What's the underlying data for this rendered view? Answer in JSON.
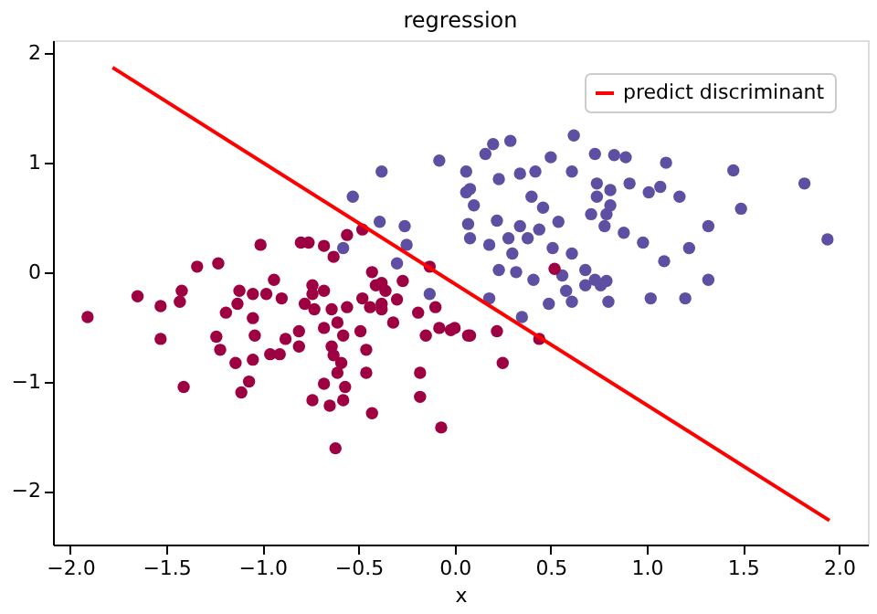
{
  "chart_data": {
    "type": "scatter",
    "title": "regression",
    "xlabel": "x",
    "xlim": [
      -2.09,
      2.15
    ],
    "ylim": [
      -2.49,
      2.12
    ],
    "xticks": [
      {
        "value": -2,
        "label": "−2.0"
      },
      {
        "value": -1.5,
        "label": "−1.5"
      },
      {
        "value": -1,
        "label": "−1.0"
      },
      {
        "value": -0.5,
        "label": "−0.5"
      },
      {
        "value": 0,
        "label": "0.0"
      },
      {
        "value": 0.5,
        "label": "0.5"
      },
      {
        "value": 1,
        "label": "1.0"
      },
      {
        "value": 1.5,
        "label": "1.5"
      },
      {
        "value": 2,
        "label": "2.0"
      }
    ],
    "yticks": [
      {
        "value": -2,
        "label": "−2"
      },
      {
        "value": -1,
        "label": "−1"
      },
      0,
      1,
      2
    ],
    "grid": false,
    "legend": "top right",
    "series": [
      {
        "type": "scatter",
        "marker": "circle",
        "color": "#5e4fa2",
        "x": [
          0.62,
          0.29,
          0.2,
          0.16,
          0.5,
          0.73,
          0.83,
          0.89,
          1.1,
          1.45,
          1.82,
          1.94,
          1.49,
          1.32,
          1.22,
          1.09,
          0.98,
          1.17,
          1.07,
          1.01,
          0.91,
          0.81,
          0.74,
          0.74,
          0.81,
          0.79,
          0.71,
          0.78,
          0.88,
          0.61,
          0.42,
          0.34,
          0.23,
          0.06,
          0.08,
          0.1,
          0.07,
          0.08,
          0.4,
          0.46,
          0.54,
          0.44,
          0.34,
          0.22,
          0.28,
          0.38,
          0.51,
          0.61,
          0.18,
          0.3,
          0.23,
          0.32,
          0.41,
          0.56,
          0.68,
          0.73,
          0.79,
          0.76,
          0.68,
          0.58,
          1.02,
          1.2,
          1.32,
          0.49,
          0.61,
          0.8,
          0.35,
          0.18,
          -0.08,
          -0.38,
          -0.53,
          -0.39,
          -0.26,
          -0.25,
          -0.58,
          -0.3,
          -0.13,
          0.06
        ],
        "values": [
          1.25,
          1.2,
          1.17,
          1.08,
          1.05,
          1.08,
          1.07,
          1.05,
          1.0,
          0.93,
          0.81,
          0.3,
          0.58,
          0.42,
          0.22,
          0.1,
          0.27,
          0.69,
          0.78,
          0.73,
          0.81,
          0.75,
          0.81,
          0.69,
          0.61,
          0.53,
          0.53,
          0.42,
          0.36,
          0.92,
          0.92,
          0.9,
          0.85,
          0.92,
          0.76,
          0.61,
          0.44,
          0.31,
          0.69,
          0.59,
          0.46,
          0.39,
          0.42,
          0.47,
          0.31,
          0.31,
          0.22,
          0.17,
          0.25,
          0.17,
          0.02,
          0.0,
          -0.07,
          -0.03,
          0.02,
          -0.07,
          -0.08,
          -0.12,
          -0.12,
          -0.17,
          -0.24,
          -0.24,
          -0.07,
          -0.29,
          -0.27,
          -0.27,
          -0.41,
          -0.24,
          1.02,
          0.92,
          0.69,
          0.46,
          0.42,
          0.25,
          0.22,
          0.08,
          -0.2,
          0.73
        ]
      },
      {
        "type": "scatter",
        "marker": "circle",
        "color": "#9e0142",
        "x": [
          -1.91,
          -1.65,
          -1.53,
          -1.42,
          -1.43,
          -1.53,
          -1.41,
          -1.34,
          -1.23,
          -1.12,
          -1.05,
          -0.98,
          -1.13,
          -1.19,
          -1.05,
          -0.94,
          -0.9,
          -1.24,
          -1.22,
          -1.14,
          -1.05,
          -1.04,
          -0.96,
          -0.91,
          -0.88,
          -0.81,
          -0.81,
          -1.07,
          -1.11,
          -0.78,
          -0.74,
          -0.68,
          -0.64,
          -0.73,
          -0.56,
          -0.48,
          -0.44,
          -0.38,
          -0.36,
          -0.3,
          -0.32,
          -0.38,
          -0.68,
          -0.61,
          -0.58,
          -0.49,
          -0.64,
          -0.63,
          -0.59,
          -0.61,
          -0.46,
          -0.46,
          -0.68,
          -0.74,
          -0.65,
          -0.57,
          -0.58,
          -0.43,
          -0.62,
          -0.18,
          -0.18,
          -0.07,
          -0.15,
          -0.08,
          -0.02,
          -0.19,
          -0.1,
          0.07,
          -0.43,
          -0.27,
          -0.41,
          -1.01,
          -0.8,
          -0.76,
          -0.68,
          -0.56,
          -0.48,
          -0.74,
          -0.38,
          -0.63,
          -0.13,
          0.0,
          0.08,
          0.22,
          0.25,
          0.44,
          0.52
        ],
        "values": [
          -0.41,
          -0.22,
          -0.31,
          -0.17,
          -0.27,
          -0.61,
          -1.05,
          0.05,
          0.08,
          -0.17,
          -0.2,
          -0.2,
          -0.29,
          -0.37,
          -0.42,
          -0.07,
          -0.24,
          -0.59,
          -0.71,
          -0.83,
          -0.8,
          -0.58,
          -0.75,
          -0.75,
          -0.61,
          -0.68,
          -0.54,
          -1.0,
          -1.1,
          -0.29,
          -0.2,
          -0.17,
          -0.34,
          -0.34,
          -0.32,
          -0.24,
          -0.32,
          -0.29,
          -0.17,
          -0.25,
          -0.46,
          -0.34,
          -0.51,
          -0.46,
          -0.58,
          -0.54,
          -0.68,
          -0.76,
          -0.83,
          -0.92,
          -0.71,
          -0.92,
          -1.02,
          -1.17,
          -1.22,
          -1.05,
          -1.17,
          -1.29,
          -1.61,
          -0.92,
          -1.14,
          -1.42,
          -0.58,
          -0.51,
          -0.53,
          -0.37,
          -0.32,
          -0.58,
          0.0,
          -0.08,
          -0.12,
          0.25,
          0.27,
          0.27,
          0.24,
          0.34,
          0.39,
          -0.12,
          -0.1,
          0.14,
          0.05,
          -0.51,
          -0.58,
          -0.54,
          -0.83,
          -0.61,
          0.03
        ]
      },
      {
        "type": "line",
        "name": "predict discriminant",
        "marker": "none",
        "line_style": "solid",
        "color": "#ff0000",
        "x": [
          -1.78,
          1.95
        ],
        "values": [
          1.87,
          -2.27
        ]
      }
    ]
  }
}
